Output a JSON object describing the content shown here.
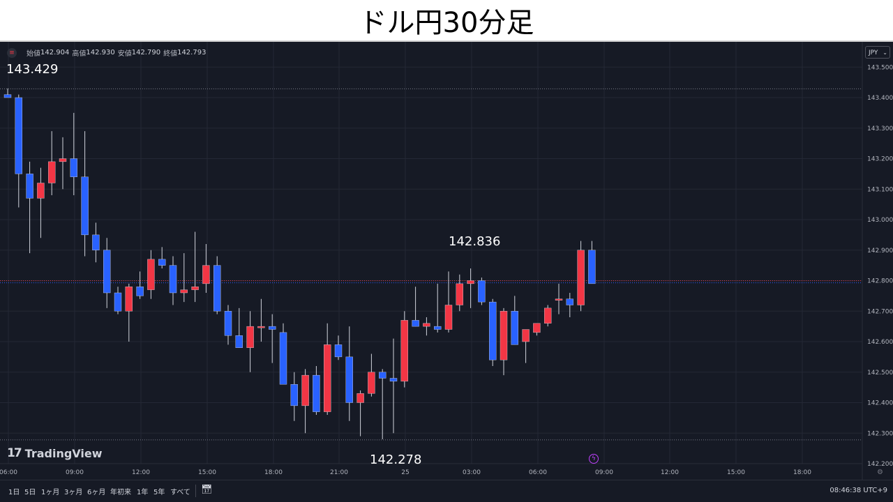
{
  "title": "ドル円30分足",
  "ohlc": {
    "symbol_icon": "currency-symbol-icon",
    "open_label": "始値",
    "open": "142.904",
    "high_label": "高値",
    "high": "142.930",
    "low_label": "安値",
    "low": "142.790",
    "close_label": "終値",
    "close": "142.793"
  },
  "currency": "JPY",
  "annotations": {
    "top": "143.429",
    "mid": "142.836",
    "bottom": "142.278"
  },
  "branding": {
    "logo_mark": "17",
    "logo_text": "TradingView"
  },
  "toolbar": {
    "timeframes": [
      "1日",
      "5日",
      "1ヶ月",
      "3ヶ月",
      "6ヶ月",
      "年初来",
      "1年",
      "5年",
      "すべて"
    ],
    "calendar_icon": "calendar-icon",
    "clock": "08:46:38 UTC+9"
  },
  "colors": {
    "background": "#161a25",
    "up": "#f23645",
    "down": "#2962ff",
    "grid": "#242835",
    "text": "#d1d4dc"
  },
  "chart_data": {
    "type": "candlestick",
    "y_axis": {
      "range": [
        142.2,
        143.56
      ],
      "ticks": [
        "143.500",
        "143.400",
        "143.300",
        "143.200",
        "143.100",
        "143.000",
        "142.900",
        "142.800",
        "142.700",
        "142.600",
        "142.500",
        "142.400",
        "142.300",
        "142.200"
      ]
    },
    "x_axis": {
      "labels": [
        "06:00",
        "09:00",
        "12:00",
        "15:00",
        "18:00",
        "21:00",
        "25",
        "03:00",
        "06:00",
        "09:00",
        "12:00",
        "15:00",
        "18:00"
      ]
    },
    "reference_lines": {
      "high": 143.429,
      "low": 142.278,
      "last": 142.793
    },
    "grid": true,
    "candles": [
      {
        "o": 143.41,
        "h": 143.43,
        "l": 143.4,
        "c": 143.4
      },
      {
        "o": 143.4,
        "h": 143.41,
        "l": 143.04,
        "c": 143.15
      },
      {
        "o": 143.15,
        "h": 143.19,
        "l": 142.89,
        "c": 143.07
      },
      {
        "o": 143.07,
        "h": 143.17,
        "l": 142.94,
        "c": 143.12
      },
      {
        "o": 143.12,
        "h": 143.29,
        "l": 143.08,
        "c": 143.19
      },
      {
        "o": 143.19,
        "h": 143.27,
        "l": 143.1,
        "c": 143.2
      },
      {
        "o": 143.2,
        "h": 143.35,
        "l": 143.08,
        "c": 143.14
      },
      {
        "o": 143.14,
        "h": 143.29,
        "l": 142.88,
        "c": 142.95
      },
      {
        "o": 142.95,
        "h": 142.99,
        "l": 142.86,
        "c": 142.9
      },
      {
        "o": 142.9,
        "h": 142.94,
        "l": 142.71,
        "c": 142.76
      },
      {
        "o": 142.76,
        "h": 142.78,
        "l": 142.69,
        "c": 142.7
      },
      {
        "o": 142.7,
        "h": 142.79,
        "l": 142.6,
        "c": 142.78
      },
      {
        "o": 142.78,
        "h": 142.83,
        "l": 142.74,
        "c": 142.75
      },
      {
        "o": 142.77,
        "h": 142.9,
        "l": 142.74,
        "c": 142.87
      },
      {
        "o": 142.87,
        "h": 142.91,
        "l": 142.84,
        "c": 142.85
      },
      {
        "o": 142.85,
        "h": 142.88,
        "l": 142.72,
        "c": 142.76
      },
      {
        "o": 142.76,
        "h": 142.89,
        "l": 142.73,
        "c": 142.77
      },
      {
        "o": 142.77,
        "h": 142.96,
        "l": 142.73,
        "c": 142.78
      },
      {
        "o": 142.79,
        "h": 142.92,
        "l": 142.76,
        "c": 142.85
      },
      {
        "o": 142.85,
        "h": 142.88,
        "l": 142.69,
        "c": 142.7
      },
      {
        "o": 142.7,
        "h": 142.72,
        "l": 142.59,
        "c": 142.62
      },
      {
        "o": 142.62,
        "h": 142.71,
        "l": 142.58,
        "c": 142.58
      },
      {
        "o": 142.58,
        "h": 142.7,
        "l": 142.5,
        "c": 142.65
      },
      {
        "o": 142.65,
        "h": 142.74,
        "l": 142.6,
        "c": 142.65
      },
      {
        "o": 142.65,
        "h": 142.69,
        "l": 142.53,
        "c": 142.64
      },
      {
        "o": 142.63,
        "h": 142.66,
        "l": 142.47,
        "c": 142.46
      },
      {
        "o": 142.46,
        "h": 142.5,
        "l": 142.34,
        "c": 142.39
      },
      {
        "o": 142.39,
        "h": 142.51,
        "l": 142.3,
        "c": 142.49
      },
      {
        "o": 142.49,
        "h": 142.52,
        "l": 142.36,
        "c": 142.37
      },
      {
        "o": 142.37,
        "h": 142.66,
        "l": 142.36,
        "c": 142.59
      },
      {
        "o": 142.59,
        "h": 142.62,
        "l": 142.54,
        "c": 142.55
      },
      {
        "o": 142.55,
        "h": 142.65,
        "l": 142.34,
        "c": 142.4
      },
      {
        "o": 142.4,
        "h": 142.44,
        "l": 142.29,
        "c": 142.43
      },
      {
        "o": 142.43,
        "h": 142.56,
        "l": 142.42,
        "c": 142.5
      },
      {
        "o": 142.5,
        "h": 142.51,
        "l": 142.28,
        "c": 142.48
      },
      {
        "o": 142.48,
        "h": 142.61,
        "l": 142.3,
        "c": 142.47
      },
      {
        "o": 142.47,
        "h": 142.7,
        "l": 142.45,
        "c": 142.67
      },
      {
        "o": 142.67,
        "h": 142.78,
        "l": 142.65,
        "c": 142.65
      },
      {
        "o": 142.65,
        "h": 142.68,
        "l": 142.62,
        "c": 142.66
      },
      {
        "o": 142.65,
        "h": 142.79,
        "l": 142.63,
        "c": 142.64
      },
      {
        "o": 142.64,
        "h": 142.83,
        "l": 142.63,
        "c": 142.72
      },
      {
        "o": 142.72,
        "h": 142.82,
        "l": 142.7,
        "c": 142.79
      },
      {
        "o": 142.79,
        "h": 142.84,
        "l": 142.71,
        "c": 142.8
      },
      {
        "o": 142.8,
        "h": 142.81,
        "l": 142.72,
        "c": 142.73
      },
      {
        "o": 142.73,
        "h": 142.74,
        "l": 142.52,
        "c": 142.54
      },
      {
        "o": 142.54,
        "h": 142.71,
        "l": 142.49,
        "c": 142.7
      },
      {
        "o": 142.7,
        "h": 142.75,
        "l": 142.59,
        "c": 142.59
      },
      {
        "o": 142.6,
        "h": 142.64,
        "l": 142.53,
        "c": 142.64
      },
      {
        "o": 142.63,
        "h": 142.66,
        "l": 142.62,
        "c": 142.66
      },
      {
        "o": 142.66,
        "h": 142.72,
        "l": 142.65,
        "c": 142.71
      },
      {
        "o": 142.74,
        "h": 142.79,
        "l": 142.69,
        "c": 142.74
      },
      {
        "o": 142.74,
        "h": 142.76,
        "l": 142.68,
        "c": 142.72
      },
      {
        "o": 142.72,
        "h": 142.93,
        "l": 142.7,
        "c": 142.9
      },
      {
        "o": 142.9,
        "h": 142.93,
        "l": 142.79,
        "c": 142.79
      }
    ]
  }
}
